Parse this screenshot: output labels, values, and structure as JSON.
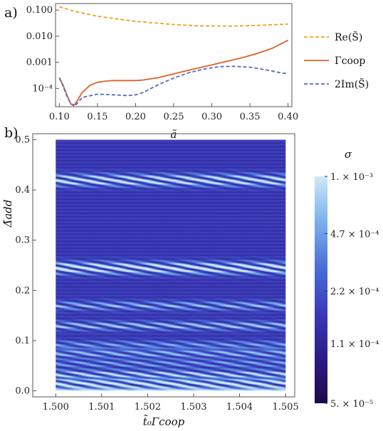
{
  "chart_data": [
    {
      "panel_label": "a)",
      "type": "line",
      "xlabel": "ã",
      "ylabel": "",
      "xlim": [
        0.095,
        0.405
      ],
      "ylim_log10": [
        -4.7,
        -0.75
      ],
      "y_scale": "log",
      "x_ticks": [
        "0.10",
        "0.15",
        "0.20",
        "0.25",
        "0.30",
        "0.35",
        "0.40"
      ],
      "x_tick_values": [
        0.1,
        0.15,
        0.2,
        0.25,
        0.3,
        0.35,
        0.4
      ],
      "y_ticks": [
        "0.100",
        "0.010",
        "0.001",
        "10⁻⁴"
      ],
      "y_tick_values": [
        0.1,
        0.01,
        0.001,
        0.0001
      ],
      "legend_position": "right",
      "series": [
        {
          "name": "Re(S̃)",
          "color": "#f0a020",
          "dash": "dashed",
          "points": [
            [
              0.1,
              0.135
            ],
            [
              0.12,
              0.09
            ],
            [
              0.15,
              0.058
            ],
            [
              0.2,
              0.037
            ],
            [
              0.25,
              0.028
            ],
            [
              0.28,
              0.025
            ],
            [
              0.3,
              0.0245
            ],
            [
              0.33,
              0.0245
            ],
            [
              0.36,
              0.026
            ],
            [
              0.4,
              0.029
            ]
          ]
        },
        {
          "name": "Γcoop",
          "color": "#e0602a",
          "dash": "solid",
          "points": [
            [
              0.1,
              0.00026
            ],
            [
              0.105,
              0.00013
            ],
            [
              0.11,
              5.5e-05
            ],
            [
              0.115,
              2.5e-05
            ],
            [
              0.12,
              2.4e-05
            ],
            [
              0.125,
              4e-05
            ],
            [
              0.13,
              7e-05
            ],
            [
              0.14,
              0.00013
            ],
            [
              0.15,
              0.00017
            ],
            [
              0.16,
              0.00019
            ],
            [
              0.17,
              0.0002
            ],
            [
              0.18,
              0.0002
            ],
            [
              0.19,
              0.0002
            ],
            [
              0.2,
              0.0002
            ],
            [
              0.21,
              0.00021
            ],
            [
              0.23,
              0.00026
            ],
            [
              0.25,
              0.00036
            ],
            [
              0.27,
              0.0005
            ],
            [
              0.3,
              0.0008
            ],
            [
              0.32,
              0.0011
            ],
            [
              0.34,
              0.0015
            ],
            [
              0.36,
              0.0022
            ],
            [
              0.38,
              0.0035
            ],
            [
              0.4,
              0.007
            ]
          ]
        },
        {
          "name": "2Im(S̃)",
          "color": "#5568c8",
          "dash": "dashed",
          "points": [
            [
              0.1,
              0.00025
            ],
            [
              0.105,
              0.00012
            ],
            [
              0.11,
              5e-05
            ],
            [
              0.115,
              2.6e-05
            ],
            [
              0.12,
              2.1e-05
            ],
            [
              0.125,
              3e-05
            ],
            [
              0.13,
              4.5e-05
            ],
            [
              0.15,
              6e-05
            ],
            [
              0.17,
              5.7e-05
            ],
            [
              0.19,
              5.3e-05
            ],
            [
              0.2,
              5.7e-05
            ],
            [
              0.21,
              7e-05
            ],
            [
              0.23,
              0.00014
            ],
            [
              0.25,
              0.00025
            ],
            [
              0.27,
              0.0004
            ],
            [
              0.29,
              0.00055
            ],
            [
              0.31,
              0.00068
            ],
            [
              0.33,
              0.0007
            ],
            [
              0.35,
              0.00065
            ],
            [
              0.37,
              0.00052
            ],
            [
              0.39,
              0.0004
            ],
            [
              0.4,
              0.00036
            ]
          ]
        }
      ]
    },
    {
      "panel_label": "b)",
      "type": "heatmap",
      "xlabel": "t̃₀Γcoop",
      "ylabel": "Δ̃add",
      "xlim": [
        1.4995,
        1.5052
      ],
      "ylim": [
        -0.012,
        0.512
      ],
      "x_ticks": [
        "1.500",
        "1.501",
        "1.502",
        "1.503",
        "1.504",
        "1.505"
      ],
      "x_tick_values": [
        1.5,
        1.501,
        1.502,
        1.503,
        1.504,
        1.505
      ],
      "y_ticks": [
        "0.0",
        "0.1",
        "0.2",
        "0.3",
        "0.4",
        "0.5"
      ],
      "y_tick_values": [
        0.0,
        0.1,
        0.2,
        0.3,
        0.4,
        0.5
      ],
      "colorbar": {
        "title": "σ",
        "scale": "log",
        "ticks": [
          "1. × 10⁻³",
          "4.7 × 10⁻⁴",
          "2.2 × 10⁻⁴",
          "1.1 × 10⁻⁴",
          "5. × 10⁻⁵"
        ],
        "tick_values": [
          0.001,
          0.00047,
          0.00022,
          0.00011,
          5e-05
        ],
        "range": [
          5e-05,
          0.001
        ],
        "colors": [
          "#1c0a4a",
          "#2e1a86",
          "#3b3ab8",
          "#4a6fd8",
          "#7ab0ee",
          "#cfe8fa"
        ]
      },
      "bright_bands_y": [
        0.015,
        0.033,
        0.055,
        0.075,
        0.092,
        0.13,
        0.17,
        0.245,
        0.42
      ],
      "band_strength": [
        0.95,
        0.7,
        0.45,
        0.55,
        0.45,
        0.6,
        0.55,
        0.95,
        0.85
      ]
    }
  ]
}
